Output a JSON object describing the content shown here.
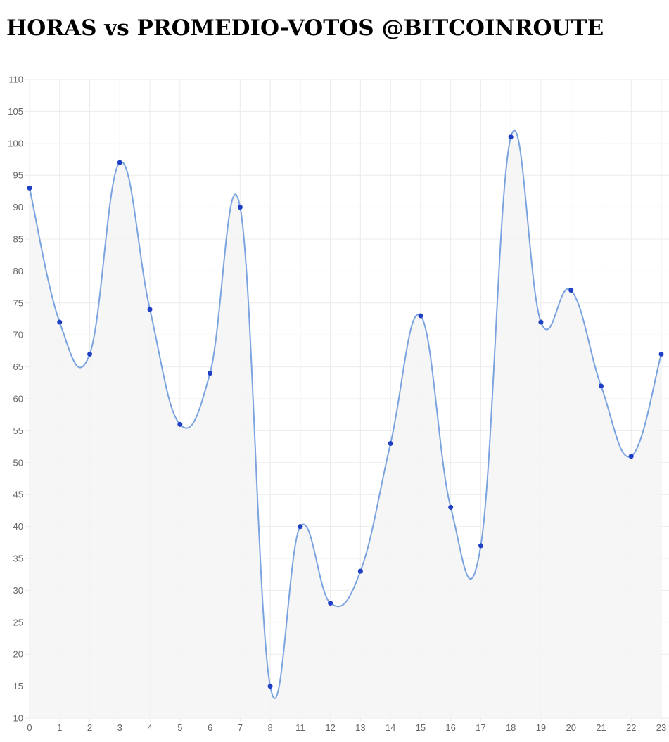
{
  "chart_data": {
    "type": "line",
    "title": "HORAS vs PROMEDIO-VOTOS @BITCOINROUTE",
    "x": [
      "0",
      "1",
      "2",
      "3",
      "4",
      "5",
      "6",
      "7",
      "8",
      "11",
      "12",
      "13",
      "14",
      "15",
      "16",
      "17",
      "18",
      "19",
      "20",
      "21",
      "22",
      "23"
    ],
    "series": [
      {
        "values": [
          93,
          72,
          67,
          97,
          74,
          56,
          64,
          90,
          15,
          40,
          28,
          33,
          53,
          73,
          43,
          37,
          101,
          72,
          77,
          62,
          51,
          67
        ]
      }
    ],
    "ylim": [
      10,
      110
    ],
    "yticks": [
      "10",
      "15",
      "20",
      "25",
      "30",
      "35",
      "40",
      "45",
      "50",
      "55",
      "60",
      "65",
      "70",
      "75",
      "80",
      "85",
      "90",
      "95",
      "100",
      "105",
      "110"
    ],
    "grid": true,
    "area_fill": true,
    "colors": {
      "line": "#7aa3e0",
      "point": "#1f3fc4",
      "fill": "#f5f5f5",
      "grid": "#ebebeb"
    }
  }
}
